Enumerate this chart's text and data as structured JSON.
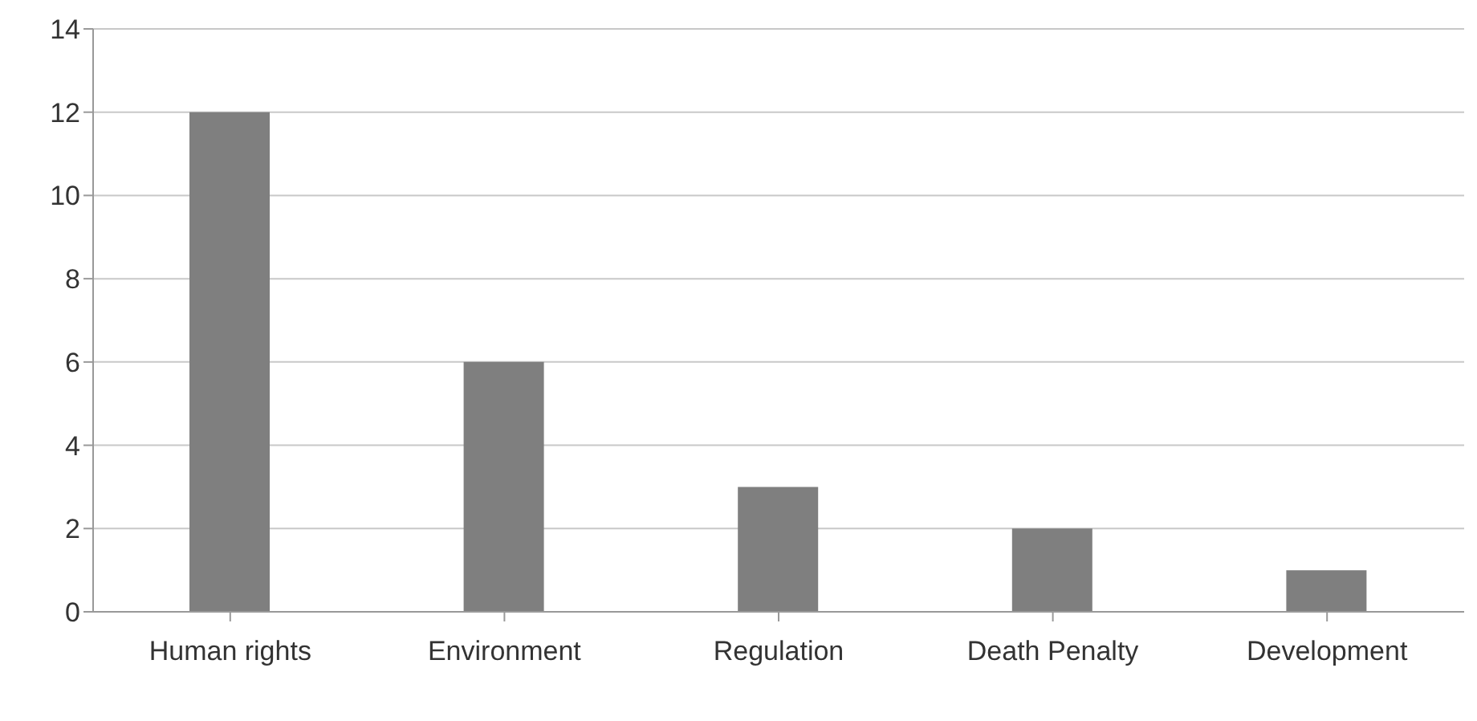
{
  "chart_data": {
    "type": "bar",
    "categories": [
      "Human rights",
      "Environment",
      "Regulation",
      "Death Penalty",
      "Development"
    ],
    "values": [
      12,
      6,
      3,
      2,
      1
    ],
    "color": "#7f7f7f",
    "ylim": [
      0,
      14
    ],
    "yticks": [
      0,
      2,
      4,
      6,
      8,
      10,
      12,
      14
    ],
    "grid": "y"
  }
}
